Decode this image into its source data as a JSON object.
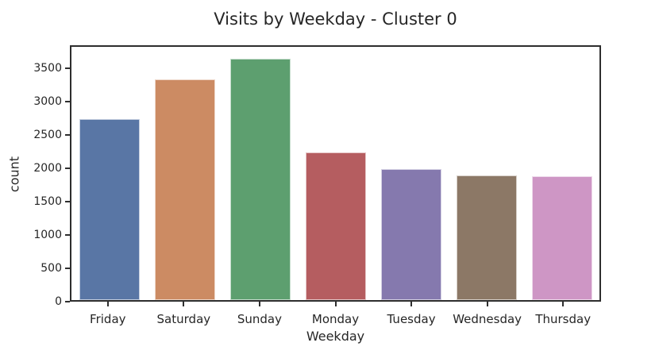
{
  "title": "Visits by Weekday - Cluster 0",
  "chart_data": {
    "type": "bar",
    "title": "Visits by Weekday - Cluster 0",
    "xlabel": "Weekday",
    "ylabel": "count",
    "categories": [
      "Friday",
      "Saturday",
      "Sunday",
      "Monday",
      "Tuesday",
      "Wednesday",
      "Thursday"
    ],
    "values": [
      2750,
      3360,
      3670,
      2250,
      1990,
      1900,
      1880
    ],
    "bar_colors": [
      "#5976A5",
      "#CC8B63",
      "#5D9F6F",
      "#B55D60",
      "#8579AE",
      "#8C7866",
      "#CE96C5"
    ],
    "yticks": [
      0,
      500,
      1000,
      1500,
      2000,
      2500,
      3000,
      3500
    ],
    "ytick_labels": [
      "0",
      "500",
      "1000",
      "1500",
      "2000",
      "2500",
      "3000",
      "3500"
    ],
    "ylim": [
      0,
      3850
    ],
    "grid": false,
    "legend": "none",
    "orientation": "vertical"
  },
  "colors": {
    "background": "#ffffff",
    "text": "#262626",
    "spine": "#2e2e2e"
  }
}
